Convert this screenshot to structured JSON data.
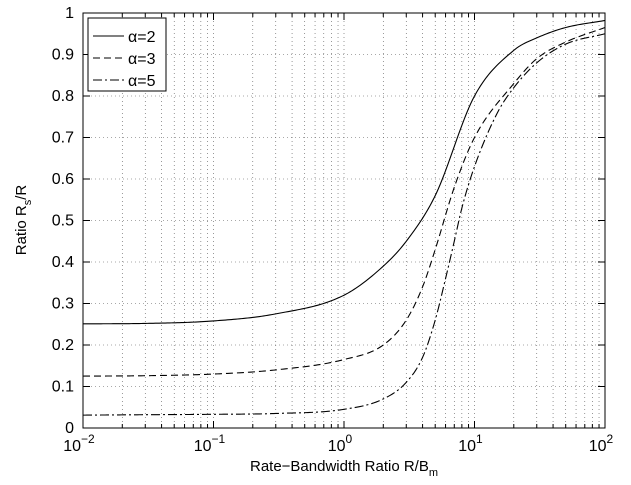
{
  "chart_data": {
    "type": "line",
    "title": "",
    "xlabel": "Rate−Bandwidth Ratio R/B",
    "xlabel_subscript": "m",
    "ylabel_parts": [
      "Ratio R",
      "s",
      "/R"
    ],
    "xscale": "log",
    "xlim": [
      0.01,
      100
    ],
    "ylim": [
      0,
      1
    ],
    "grid": true,
    "legend_position": "top-left",
    "x_ticks": [
      {
        "base": "10",
        "exp": "−2",
        "value": 0.01
      },
      {
        "base": "10",
        "exp": "−1",
        "value": 0.1
      },
      {
        "base": "10",
        "exp": "0",
        "value": 1
      },
      {
        "base": "10",
        "exp": "1",
        "value": 10
      },
      {
        "base": "10",
        "exp": "2",
        "value": 100
      }
    ],
    "y_ticks": [
      "0",
      "0.1",
      "0.2",
      "0.3",
      "0.4",
      "0.5",
      "0.6",
      "0.7",
      "0.8",
      "0.9",
      "1"
    ],
    "series": [
      {
        "name": "α=2",
        "style": "solid",
        "x": [
          0.01,
          0.03,
          0.1,
          0.3,
          1,
          2,
          3,
          5,
          10,
          20,
          30,
          50,
          100
        ],
        "y": [
          0.251,
          0.252,
          0.258,
          0.275,
          0.32,
          0.39,
          0.45,
          0.56,
          0.8,
          0.91,
          0.94,
          0.965,
          0.982
        ]
      },
      {
        "name": "α=3",
        "style": "dashed",
        "x": [
          0.01,
          0.03,
          0.1,
          0.3,
          1,
          2,
          3,
          4,
          5,
          7,
          10,
          20,
          30,
          50,
          100
        ],
        "y": [
          0.125,
          0.126,
          0.13,
          0.14,
          0.165,
          0.2,
          0.26,
          0.34,
          0.43,
          0.58,
          0.7,
          0.83,
          0.89,
          0.93,
          0.965
        ]
      },
      {
        "name": "α=5",
        "style": "dashdot",
        "x": [
          0.01,
          0.03,
          0.1,
          0.3,
          1,
          2,
          3,
          4,
          5,
          6,
          7,
          8,
          10,
          15,
          20,
          30,
          50,
          100
        ],
        "y": [
          0.031,
          0.032,
          0.033,
          0.035,
          0.045,
          0.07,
          0.11,
          0.17,
          0.26,
          0.36,
          0.45,
          0.53,
          0.63,
          0.76,
          0.82,
          0.88,
          0.925,
          0.95
        ]
      }
    ]
  }
}
